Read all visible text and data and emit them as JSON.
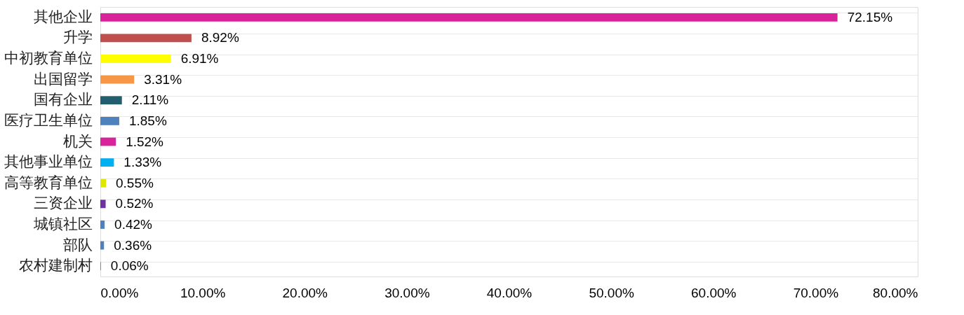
{
  "chart_data": {
    "type": "bar",
    "orientation": "horizontal",
    "categories": [
      "其他企业",
      "升学",
      "中初教育单位",
      "出国留学",
      "国有企业",
      "医疗卫生单位",
      "机关",
      "其他事业单位",
      "高等教育单位",
      "三资企业",
      "城镇社区",
      "部队",
      "农村建制村"
    ],
    "values": [
      72.15,
      8.92,
      6.91,
      3.31,
      2.11,
      1.85,
      1.52,
      1.33,
      0.55,
      0.52,
      0.42,
      0.36,
      0.06
    ],
    "colors": [
      "#d9239b",
      "#c0504d",
      "#ffff00",
      "#f79646",
      "#215e6e",
      "#4f81bd",
      "#d9239b",
      "#00b0f0",
      "#dde800",
      "#7030a0",
      "#4f81bd",
      "#4f81bd",
      "#4f81bd"
    ],
    "value_labels": [
      "72.15%",
      "8.92%",
      "6.91%",
      "3.31%",
      "2.11%",
      "1.85%",
      "1.52%",
      "1.33%",
      "0.55%",
      "0.52%",
      "0.42%",
      "0.36%",
      "0.06%"
    ],
    "xlim": [
      0,
      80
    ],
    "xticks": [
      {
        "value": 0,
        "label": "0.00%"
      },
      {
        "value": 10,
        "label": "10.00%"
      },
      {
        "value": 20,
        "label": "20.00%"
      },
      {
        "value": 30,
        "label": "30.00%"
      },
      {
        "value": 40,
        "label": "40.00%"
      },
      {
        "value": 50,
        "label": "50.00%"
      },
      {
        "value": 60,
        "label": "60.00%"
      },
      {
        "value": 70,
        "label": "70.00%"
      },
      {
        "value": 80,
        "label": "80.00%"
      }
    ],
    "grid": "y"
  }
}
